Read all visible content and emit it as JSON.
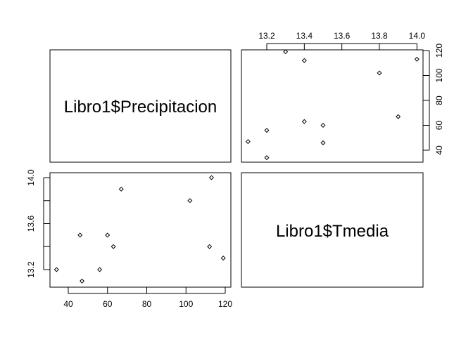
{
  "chart_data": {
    "type": "scatter",
    "variables": [
      "Libro1$Precipitacion",
      "Libro1$Tmedia"
    ],
    "points": [
      {
        "precipitacion": 34,
        "tmedia": 13.2
      },
      {
        "precipitacion": 46,
        "tmedia": 13.5
      },
      {
        "precipitacion": 47,
        "tmedia": 13.1
      },
      {
        "precipitacion": 56,
        "tmedia": 13.2
      },
      {
        "precipitacion": 60,
        "tmedia": 13.5
      },
      {
        "precipitacion": 63,
        "tmedia": 13.4
      },
      {
        "precipitacion": 67,
        "tmedia": 13.9
      },
      {
        "precipitacion": 102,
        "tmedia": 13.8
      },
      {
        "precipitacion": 112,
        "tmedia": 13.4
      },
      {
        "precipitacion": 113,
        "tmedia": 14.0
      },
      {
        "precipitacion": 119,
        "tmedia": 13.3
      }
    ],
    "precipitacion_ticks": [
      "40",
      "60",
      "80",
      "100",
      "120"
    ],
    "tmedia_ticks_upper": [
      "13.2",
      "13.4",
      "13.6",
      "13.8",
      "14.0"
    ],
    "tmedia_ticks_left": [
      "13.2",
      "13.6",
      "14.0"
    ],
    "precipitacion_range": [
      30,
      122
    ],
    "tmedia_range": [
      13.08,
      14.02
    ],
    "grid": false,
    "legend": "none"
  }
}
